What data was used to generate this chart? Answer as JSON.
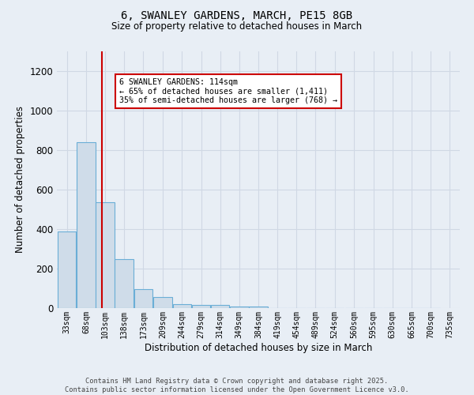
{
  "title_line1": "6, SWANLEY GARDENS, MARCH, PE15 8GB",
  "title_line2": "Size of property relative to detached houses in March",
  "xlabel": "Distribution of detached houses by size in March",
  "ylabel": "Number of detached properties",
  "bar_edges": [
    33,
    68,
    103,
    138,
    173,
    209,
    244,
    279,
    314,
    349,
    384,
    419,
    454,
    489,
    524,
    560,
    595,
    630,
    665,
    700,
    735
  ],
  "bar_heights": [
    390,
    840,
    535,
    250,
    95,
    55,
    20,
    15,
    15,
    10,
    10,
    0,
    0,
    0,
    0,
    0,
    0,
    0,
    0,
    0
  ],
  "bar_color": "#cfdce9",
  "bar_edge_color": "#6aaed6",
  "bar_linewidth": 0.8,
  "vline_x": 114,
  "vline_color": "#cc0000",
  "vline_linewidth": 1.5,
  "annotation_text": "6 SWANLEY GARDENS: 114sqm\n← 65% of detached houses are smaller (1,411)\n35% of semi-detached houses are larger (768) →",
  "annotation_box_color": "#ffffff",
  "annotation_box_edge": "#cc0000",
  "ylim": [
    0,
    1300
  ],
  "yticks": [
    0,
    200,
    400,
    600,
    800,
    1000,
    1200
  ],
  "bg_color": "#e8eef5",
  "grid_color": "#d0d8e4",
  "footer_line1": "Contains HM Land Registry data © Crown copyright and database right 2025.",
  "footer_line2": "Contains public sector information licensed under the Open Government Licence v3.0."
}
